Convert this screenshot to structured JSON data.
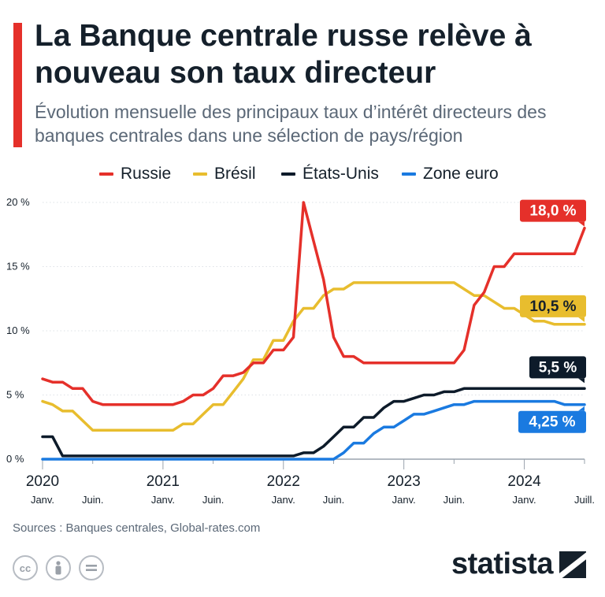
{
  "header": {
    "title": "La Banque centrale russe relève à nouveau son taux directeur",
    "subtitle": "Évolution mensuelle des principaux taux d’intérêt directeurs des banques centrales dans une sélection de pays/région"
  },
  "footer": {
    "sources": "Sources : Banques centrales, Global-rates.com",
    "brand": "statista",
    "icons": [
      "cc-icon",
      "person-icon",
      "equals-icon"
    ]
  },
  "chart_data": {
    "type": "line",
    "title": "La Banque centrale russe relève à nouveau son taux directeur",
    "subtitle": "Évolution mensuelle des principaux taux d’intérêt directeurs des banques centrales dans une sélection de pays/région",
    "xlabel": "",
    "ylabel": "",
    "y_unit": "%",
    "ylim": [
      0,
      20
    ],
    "y_ticks": [
      0,
      5,
      10,
      15,
      20
    ],
    "y_tick_labels": [
      "0 %",
      "5 %",
      "10 %",
      "15 %",
      "20 %"
    ],
    "grid": true,
    "legend_position": "top",
    "x_ticks": [
      {
        "month": 0,
        "year": "2020",
        "month_label": "Janv."
      },
      {
        "month": 5,
        "year": "",
        "month_label": "Juin."
      },
      {
        "month": 12,
        "year": "2021",
        "month_label": "Janv."
      },
      {
        "month": 17,
        "year": "",
        "month_label": "Juin."
      },
      {
        "month": 24,
        "year": "2022",
        "month_label": "Janv."
      },
      {
        "month": 29,
        "year": "",
        "month_label": "Juin."
      },
      {
        "month": 36,
        "year": "2023",
        "month_label": "Janv."
      },
      {
        "month": 41,
        "year": "",
        "month_label": "Juin."
      },
      {
        "month": 48,
        "year": "2024",
        "month_label": "Janv."
      },
      {
        "month": 54,
        "year": "",
        "month_label": "Juill."
      }
    ],
    "series": [
      {
        "name": "Russie",
        "color": "#e5302a",
        "end_label": "18,0 %",
        "values": [
          [
            0,
            6.25
          ],
          [
            1,
            6.0
          ],
          [
            2,
            6.0
          ],
          [
            3,
            5.5
          ],
          [
            4,
            5.5
          ],
          [
            5,
            4.5
          ],
          [
            6,
            4.25
          ],
          [
            7,
            4.25
          ],
          [
            8,
            4.25
          ],
          [
            9,
            4.25
          ],
          [
            10,
            4.25
          ],
          [
            11,
            4.25
          ],
          [
            12,
            4.25
          ],
          [
            13,
            4.25
          ],
          [
            14,
            4.5
          ],
          [
            15,
            5.0
          ],
          [
            16,
            5.0
          ],
          [
            17,
            5.5
          ],
          [
            18,
            6.5
          ],
          [
            19,
            6.5
          ],
          [
            20,
            6.75
          ],
          [
            21,
            7.5
          ],
          [
            22,
            7.5
          ],
          [
            23,
            8.5
          ],
          [
            24,
            8.5
          ],
          [
            25,
            9.5
          ],
          [
            26,
            20.0
          ],
          [
            27,
            17.0
          ],
          [
            28,
            14.0
          ],
          [
            29,
            9.5
          ],
          [
            30,
            8.0
          ],
          [
            31,
            8.0
          ],
          [
            32,
            7.5
          ],
          [
            33,
            7.5
          ],
          [
            34,
            7.5
          ],
          [
            35,
            7.5
          ],
          [
            36,
            7.5
          ],
          [
            37,
            7.5
          ],
          [
            38,
            7.5
          ],
          [
            39,
            7.5
          ],
          [
            40,
            7.5
          ],
          [
            41,
            7.5
          ],
          [
            42,
            8.5
          ],
          [
            43,
            12.0
          ],
          [
            44,
            13.0
          ],
          [
            45,
            15.0
          ],
          [
            46,
            15.0
          ],
          [
            47,
            16.0
          ],
          [
            48,
            16.0
          ],
          [
            49,
            16.0
          ],
          [
            50,
            16.0
          ],
          [
            51,
            16.0
          ],
          [
            52,
            16.0
          ],
          [
            53,
            16.0
          ],
          [
            54,
            18.0
          ]
        ]
      },
      {
        "name": "Brésil",
        "color": "#e8bd2e",
        "end_label": "10,5 %",
        "values": [
          [
            0,
            4.5
          ],
          [
            1,
            4.25
          ],
          [
            2,
            3.75
          ],
          [
            3,
            3.75
          ],
          [
            4,
            3.0
          ],
          [
            5,
            2.25
          ],
          [
            6,
            2.25
          ],
          [
            7,
            2.25
          ],
          [
            8,
            2.25
          ],
          [
            9,
            2.25
          ],
          [
            10,
            2.25
          ],
          [
            11,
            2.25
          ],
          [
            12,
            2.25
          ],
          [
            13,
            2.25
          ],
          [
            14,
            2.75
          ],
          [
            15,
            2.75
          ],
          [
            16,
            3.5
          ],
          [
            17,
            4.25
          ],
          [
            18,
            4.25
          ],
          [
            19,
            5.25
          ],
          [
            20,
            6.25
          ],
          [
            21,
            7.75
          ],
          [
            22,
            7.75
          ],
          [
            23,
            9.25
          ],
          [
            24,
            9.25
          ],
          [
            25,
            10.75
          ],
          [
            26,
            11.75
          ],
          [
            27,
            11.75
          ],
          [
            28,
            12.75
          ],
          [
            29,
            13.25
          ],
          [
            30,
            13.25
          ],
          [
            31,
            13.75
          ],
          [
            32,
            13.75
          ],
          [
            33,
            13.75
          ],
          [
            34,
            13.75
          ],
          [
            35,
            13.75
          ],
          [
            36,
            13.75
          ],
          [
            37,
            13.75
          ],
          [
            38,
            13.75
          ],
          [
            39,
            13.75
          ],
          [
            40,
            13.75
          ],
          [
            41,
            13.75
          ],
          [
            42,
            13.25
          ],
          [
            43,
            12.75
          ],
          [
            44,
            12.75
          ],
          [
            45,
            12.25
          ],
          [
            46,
            11.75
          ],
          [
            47,
            11.75
          ],
          [
            48,
            11.25
          ],
          [
            49,
            10.75
          ],
          [
            50,
            10.75
          ],
          [
            51,
            10.5
          ],
          [
            52,
            10.5
          ],
          [
            53,
            10.5
          ],
          [
            54,
            10.5
          ]
        ]
      },
      {
        "name": "États-Unis",
        "color": "#0d1b2a",
        "end_label": "5,5 %",
        "values": [
          [
            0,
            1.75
          ],
          [
            1,
            1.75
          ],
          [
            2,
            0.25
          ],
          [
            3,
            0.25
          ],
          [
            4,
            0.25
          ],
          [
            5,
            0.25
          ],
          [
            6,
            0.25
          ],
          [
            7,
            0.25
          ],
          [
            8,
            0.25
          ],
          [
            9,
            0.25
          ],
          [
            10,
            0.25
          ],
          [
            11,
            0.25
          ],
          [
            12,
            0.25
          ],
          [
            13,
            0.25
          ],
          [
            14,
            0.25
          ],
          [
            15,
            0.25
          ],
          [
            16,
            0.25
          ],
          [
            17,
            0.25
          ],
          [
            18,
            0.25
          ],
          [
            19,
            0.25
          ],
          [
            20,
            0.25
          ],
          [
            21,
            0.25
          ],
          [
            22,
            0.25
          ],
          [
            23,
            0.25
          ],
          [
            24,
            0.25
          ],
          [
            25,
            0.25
          ],
          [
            26,
            0.5
          ],
          [
            27,
            0.5
          ],
          [
            28,
            1.0
          ],
          [
            29,
            1.75
          ],
          [
            30,
            2.5
          ],
          [
            31,
            2.5
          ],
          [
            32,
            3.25
          ],
          [
            33,
            3.25
          ],
          [
            34,
            4.0
          ],
          [
            35,
            4.5
          ],
          [
            36,
            4.5
          ],
          [
            37,
            4.75
          ],
          [
            38,
            5.0
          ],
          [
            39,
            5.0
          ],
          [
            40,
            5.25
          ],
          [
            41,
            5.25
          ],
          [
            42,
            5.5
          ],
          [
            43,
            5.5
          ],
          [
            44,
            5.5
          ],
          [
            45,
            5.5
          ],
          [
            46,
            5.5
          ],
          [
            47,
            5.5
          ],
          [
            48,
            5.5
          ],
          [
            49,
            5.5
          ],
          [
            50,
            5.5
          ],
          [
            51,
            5.5
          ],
          [
            52,
            5.5
          ],
          [
            53,
            5.5
          ],
          [
            54,
            5.5
          ]
        ]
      },
      {
        "name": "Zone euro",
        "color": "#1a7ae0",
        "end_label": "4,25 %",
        "values": [
          [
            0,
            0.0
          ],
          [
            1,
            0.0
          ],
          [
            2,
            0.0
          ],
          [
            3,
            0.0
          ],
          [
            4,
            0.0
          ],
          [
            5,
            0.0
          ],
          [
            6,
            0.0
          ],
          [
            7,
            0.0
          ],
          [
            8,
            0.0
          ],
          [
            9,
            0.0
          ],
          [
            10,
            0.0
          ],
          [
            11,
            0.0
          ],
          [
            12,
            0.0
          ],
          [
            13,
            0.0
          ],
          [
            14,
            0.0
          ],
          [
            15,
            0.0
          ],
          [
            16,
            0.0
          ],
          [
            17,
            0.0
          ],
          [
            18,
            0.0
          ],
          [
            19,
            0.0
          ],
          [
            20,
            0.0
          ],
          [
            21,
            0.0
          ],
          [
            22,
            0.0
          ],
          [
            23,
            0.0
          ],
          [
            24,
            0.0
          ],
          [
            25,
            0.0
          ],
          [
            26,
            0.0
          ],
          [
            27,
            0.0
          ],
          [
            28,
            0.0
          ],
          [
            29,
            0.0
          ],
          [
            30,
            0.5
          ],
          [
            31,
            1.25
          ],
          [
            32,
            1.25
          ],
          [
            33,
            2.0
          ],
          [
            34,
            2.5
          ],
          [
            35,
            2.5
          ],
          [
            36,
            3.0
          ],
          [
            37,
            3.5
          ],
          [
            38,
            3.5
          ],
          [
            39,
            3.75
          ],
          [
            40,
            4.0
          ],
          [
            41,
            4.25
          ],
          [
            42,
            4.25
          ],
          [
            43,
            4.5
          ],
          [
            44,
            4.5
          ],
          [
            45,
            4.5
          ],
          [
            46,
            4.5
          ],
          [
            47,
            4.5
          ],
          [
            48,
            4.5
          ],
          [
            49,
            4.5
          ],
          [
            50,
            4.5
          ],
          [
            51,
            4.5
          ],
          [
            52,
            4.25
          ],
          [
            53,
            4.25
          ],
          [
            54,
            4.25
          ]
        ]
      }
    ]
  }
}
